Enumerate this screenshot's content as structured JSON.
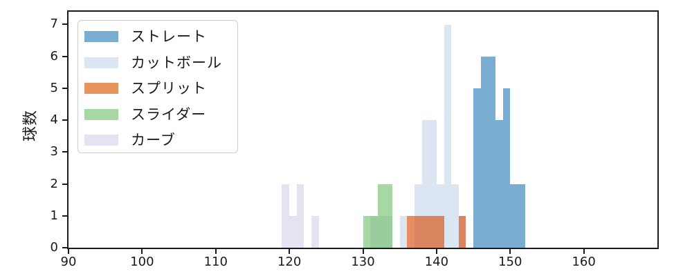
{
  "chart_data": {
    "type": "bar",
    "subtype": "overlapping-histograms",
    "title": "",
    "xlabel": "",
    "ylabel": "球数",
    "xlim": [
      90,
      170
    ],
    "ylim": [
      0,
      7.4
    ],
    "x_ticks": [
      90,
      100,
      110,
      120,
      130,
      140,
      150,
      160
    ],
    "y_ticks": [
      0,
      1,
      2,
      3,
      4,
      5,
      6,
      7
    ],
    "bin_width": 1,
    "grid": false,
    "legend_position": "upper-left",
    "axis_color": "#1a1a1a",
    "background_color": "#ffffff",
    "series": [
      {
        "name": "ストレート",
        "color": "rgba(31,119,180,0.6)",
        "solid_color": "#79add2",
        "bins": [
          {
            "x": 145,
            "count": 5
          },
          {
            "x": 146,
            "count": 6
          },
          {
            "x": 147,
            "count": 6
          },
          {
            "x": 148,
            "count": 4
          },
          {
            "x": 149,
            "count": 5
          },
          {
            "x": 150,
            "count": 2
          },
          {
            "x": 151,
            "count": 2
          }
        ]
      },
      {
        "name": "カットボール",
        "color": "rgba(195,213,233,0.6)",
        "solid_color": "#dbe6f2",
        "bins": [
          {
            "x": 131,
            "count": 1
          },
          {
            "x": 132,
            "count": 1
          },
          {
            "x": 133,
            "count": 1
          },
          {
            "x": 135,
            "count": 1
          },
          {
            "x": 137,
            "count": 2
          },
          {
            "x": 138,
            "count": 4
          },
          {
            "x": 139,
            "count": 4
          },
          {
            "x": 140,
            "count": 2
          },
          {
            "x": 141,
            "count": 7
          },
          {
            "x": 142,
            "count": 2
          },
          {
            "x": 143,
            "count": 1
          }
        ]
      },
      {
        "name": "スプリット",
        "color": "rgba(218,73,6,0.62)",
        "solid_color": "#e8925d",
        "bins": [
          {
            "x": 136,
            "count": 1
          },
          {
            "x": 137,
            "count": 1
          },
          {
            "x": 138,
            "count": 1
          },
          {
            "x": 139,
            "count": 1
          },
          {
            "x": 140,
            "count": 1
          },
          {
            "x": 143,
            "count": 1
          }
        ]
      },
      {
        "name": "スライダー",
        "color": "rgba(108,188,100,0.6)",
        "solid_color": "#a7d7a2",
        "bins": [
          {
            "x": 130,
            "count": 1
          },
          {
            "x": 131,
            "count": 1
          },
          {
            "x": 132,
            "count": 2
          },
          {
            "x": 133,
            "count": 2
          }
        ]
      },
      {
        "name": "カーブ",
        "color": "rgba(208,208,231,0.6)",
        "solid_color": "#e3e3f1",
        "bins": [
          {
            "x": 119,
            "count": 2
          },
          {
            "x": 120,
            "count": 1
          },
          {
            "x": 121,
            "count": 2
          },
          {
            "x": 123,
            "count": 1
          }
        ]
      }
    ]
  }
}
